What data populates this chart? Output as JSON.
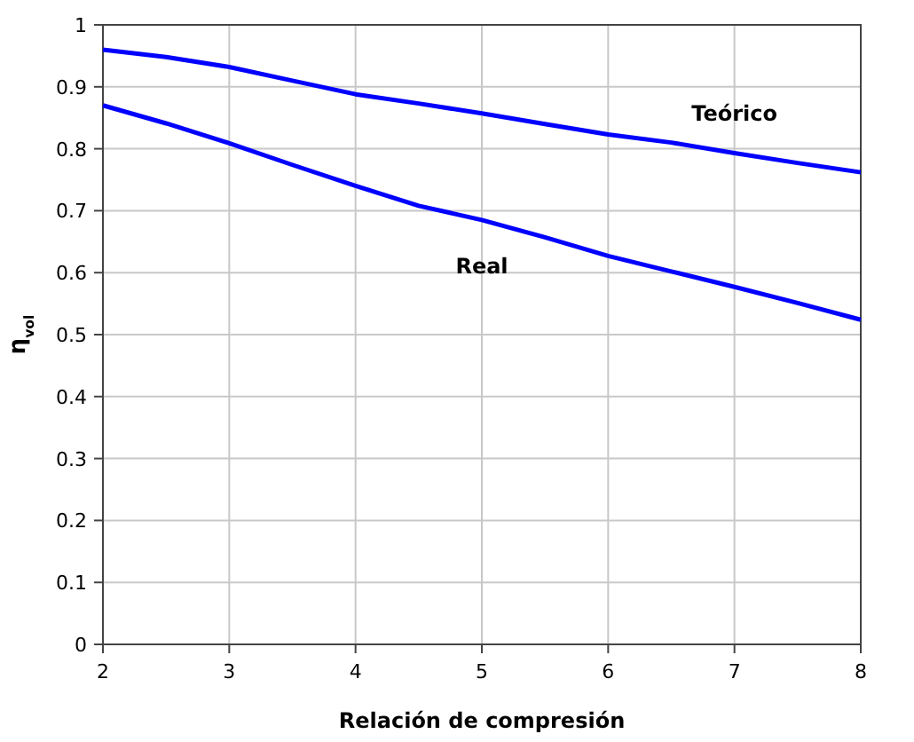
{
  "chart_data": {
    "type": "line",
    "xlabel": "Relación de compresión",
    "ylabel": "η$_{vol}$",
    "x": [
      2,
      2.5,
      3,
      3.5,
      4,
      4.5,
      5,
      5.5,
      6,
      6.5,
      7,
      7.5,
      8
    ],
    "series": [
      {
        "name": "Teórico",
        "color": "#0000ff",
        "values": [
          0.96,
          0.948,
          0.932,
          0.91,
          0.888,
          0.873,
          0.857,
          0.84,
          0.823,
          0.81,
          0.793,
          0.777,
          0.762
        ]
      },
      {
        "name": "Real",
        "color": "#0000ff",
        "values": [
          0.87,
          0.841,
          0.809,
          0.774,
          0.74,
          0.708,
          0.685,
          0.657,
          0.627,
          0.602,
          0.577,
          0.551,
          0.524
        ]
      }
    ],
    "xlim": [
      2,
      8
    ],
    "xticks": [
      2,
      3,
      4,
      5,
      6,
      7,
      8
    ],
    "ylim": [
      0,
      1
    ],
    "yticks": [
      0,
      0.1,
      0.2,
      0.3,
      0.4,
      0.5,
      0.6,
      0.7,
      0.8,
      0.9,
      1
    ],
    "grid": true,
    "marker": "none",
    "line_style": "solid"
  }
}
